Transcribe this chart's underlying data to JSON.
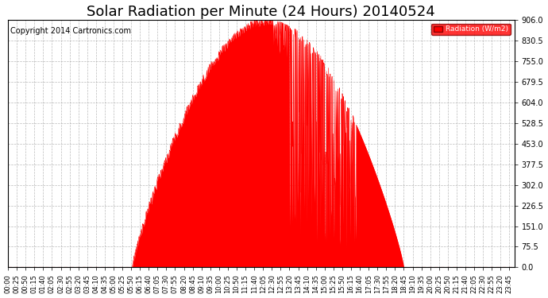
{
  "title": "Solar Radiation per Minute (24 Hours) 20140524",
  "copyright": "Copyright 2014 Cartronics.com",
  "legend_label": "Radiation (W/m2)",
  "y_ticks": [
    0.0,
    75.5,
    151.0,
    226.5,
    302.0,
    377.5,
    453.0,
    528.5,
    604.0,
    679.5,
    755.0,
    830.5,
    906.0
  ],
  "ylim": [
    0.0,
    906.0
  ],
  "fill_color": "#FF0000",
  "line_color": "#FF0000",
  "dashed_color": "#FF0000",
  "grid_color": "#AAAAAA",
  "background_color": "#FFFFFF",
  "title_fontsize": 13,
  "copyright_fontsize": 7,
  "tick_fontsize": 6,
  "ytick_fontsize": 7,
  "sunrise_min": 353,
  "sunset_min": 1125,
  "peak_min": 770,
  "peak_val": 906.0
}
